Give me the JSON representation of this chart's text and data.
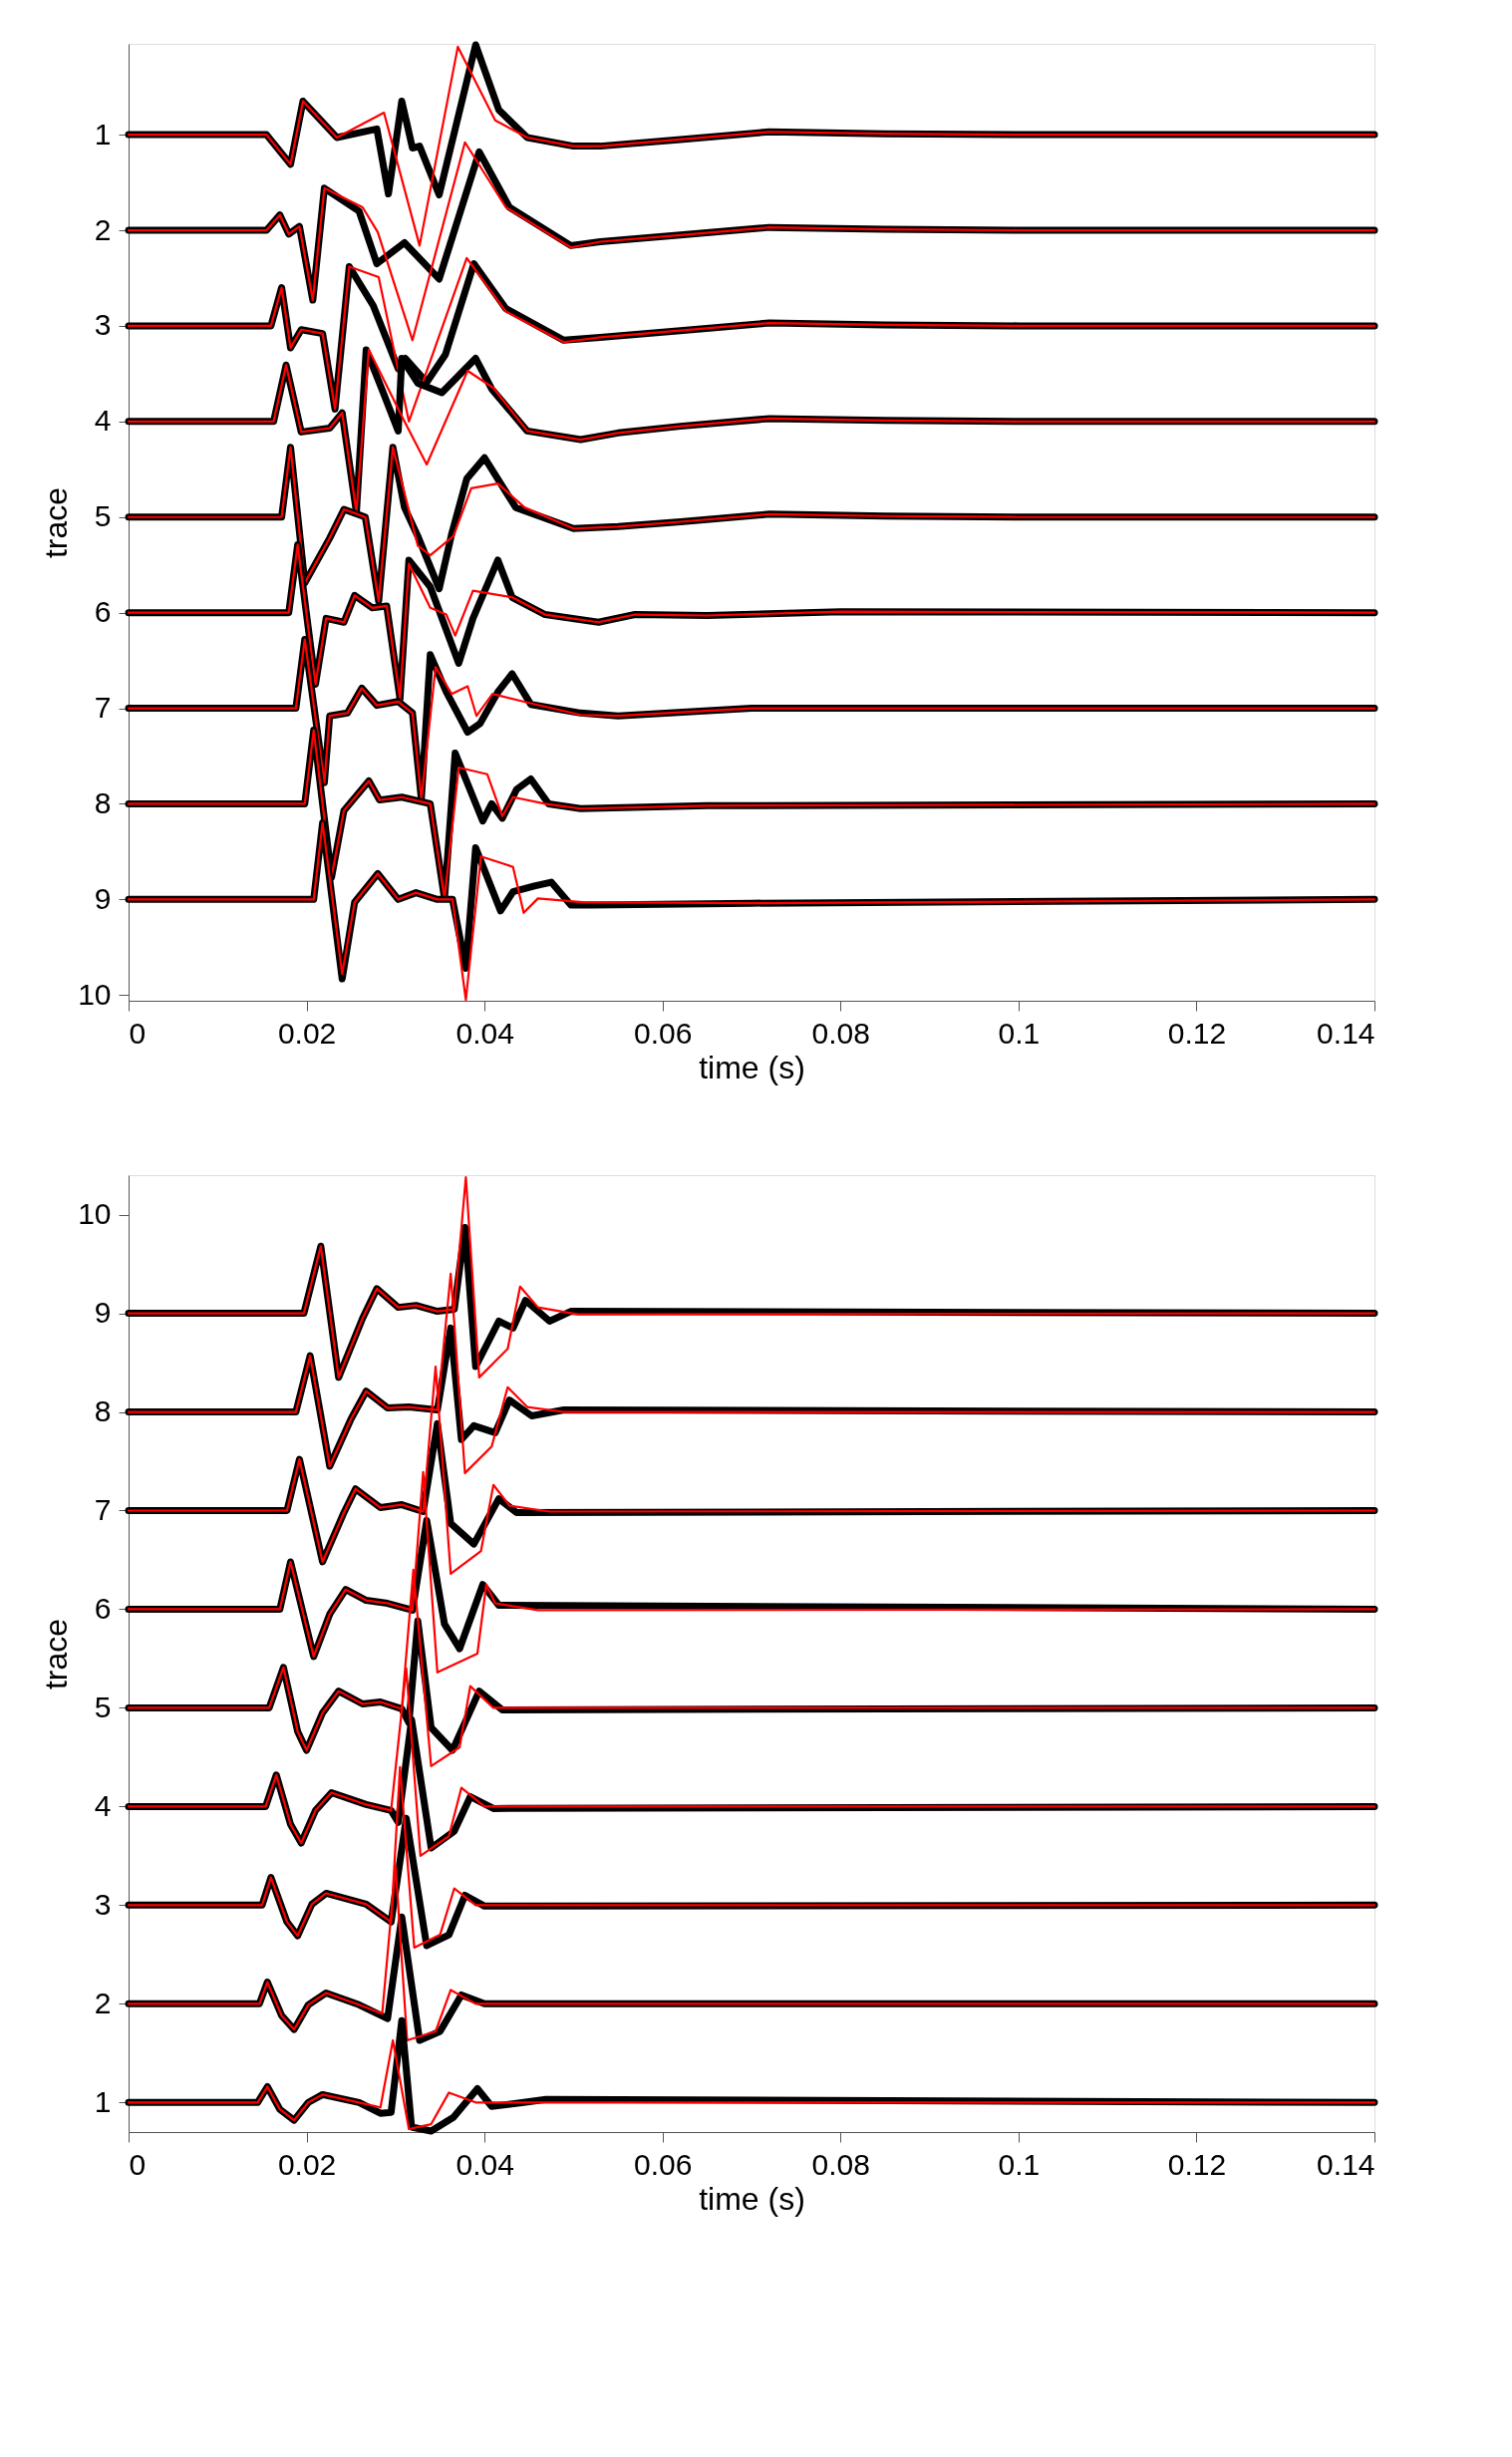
{
  "chart_data": [
    {
      "type": "line",
      "xlabel": "time (s)",
      "ylabel": "trace",
      "xlim": [
        0,
        0.14
      ],
      "xticks": [
        0,
        0.02,
        0.04,
        0.06,
        0.08,
        0.1,
        0.12,
        0.14
      ],
      "ylim": [
        10.06,
        0.05
      ],
      "yticks": [
        1,
        2,
        3,
        4,
        5,
        6,
        7,
        8,
        9,
        10
      ],
      "series": [
        {
          "color": "#000000",
          "x": [
            0,
            0.0155,
            0.0182,
            0.0196,
            0.0234,
            0.0279,
            0.0292,
            0.0307,
            0.0319,
            0.0327,
            0.0349,
            0.039,
            0.0416,
            0.0448,
            0.05,
            0.053,
            0.062,
            0.072,
            0.085,
            0.1,
            0.14
          ],
          "values": [
            1,
            1,
            1.31,
            0.65,
            1.03,
            0.94,
            1.62,
            0.65,
            1.14,
            1.12,
            1.63,
            0.06,
            0.74,
            1.03,
            1.12,
            1.12,
            1.05,
            0.97,
            0.99,
            1.0,
            1.0
          ]
        },
        {
          "color": "#ff0000",
          "x": [
            0,
            0.0155,
            0.0182,
            0.0196,
            0.0234,
            0.0287,
            0.0327,
            0.037,
            0.0412,
            0.0448,
            0.05,
            0.053,
            0.062,
            0.072,
            0.085,
            0.1,
            0.14
          ],
          "values": [
            1,
            1,
            1.31,
            0.65,
            1.03,
            0.77,
            2.16,
            0.08,
            0.85,
            1.03,
            1.12,
            1.12,
            1.05,
            0.97,
            0.99,
            1.0,
            1.0
          ]
        },
        {
          "color": "#000000",
          "x": [
            0,
            0.0155,
            0.017,
            0.018,
            0.0192,
            0.0207,
            0.022,
            0.0259,
            0.0279,
            0.031,
            0.0349,
            0.0394,
            0.0428,
            0.0497,
            0.053,
            0.062,
            0.072,
            0.085,
            0.1,
            0.14
          ],
          "values": [
            2,
            2,
            1.84,
            2.04,
            1.96,
            2.73,
            1.56,
            1.8,
            2.35,
            2.13,
            2.51,
            1.18,
            1.76,
            2.16,
            2.12,
            2.05,
            1.97,
            1.99,
            2.0,
            2.0
          ]
        },
        {
          "color": "#ff0000",
          "x": [
            0,
            0.0155,
            0.017,
            0.018,
            0.0192,
            0.0207,
            0.022,
            0.0263,
            0.028,
            0.0319,
            0.0378,
            0.0424,
            0.0497,
            0.053,
            0.062,
            0.072,
            0.085,
            0.1,
            0.14
          ],
          "values": [
            2,
            2,
            1.84,
            2.04,
            1.96,
            2.73,
            1.56,
            1.76,
            2.02,
            3.15,
            1.08,
            1.76,
            2.18,
            2.12,
            2.05,
            1.97,
            1.99,
            2.0,
            2.0
          ]
        },
        {
          "color": "#000000",
          "x": [
            0,
            0.016,
            0.0172,
            0.0182,
            0.0194,
            0.0218,
            0.0232,
            0.0248,
            0.0275,
            0.0303,
            0.0311,
            0.0335,
            0.0356,
            0.0388,
            0.0424,
            0.0489,
            0.053,
            0.062,
            0.072,
            0.085,
            0.1,
            0.14
          ],
          "values": [
            3,
            3,
            2.6,
            3.23,
            3.04,
            3.08,
            3.87,
            2.38,
            2.79,
            3.45,
            3.34,
            3.59,
            3.3,
            2.35,
            2.82,
            3.15,
            3.12,
            3.05,
            2.97,
            2.99,
            3.0,
            3.0
          ]
        },
        {
          "color": "#ff0000",
          "x": [
            0,
            0.016,
            0.0172,
            0.0182,
            0.0194,
            0.0218,
            0.0232,
            0.0248,
            0.0281,
            0.0315,
            0.038,
            0.0424,
            0.0489,
            0.053,
            0.062,
            0.072,
            0.085,
            0.1,
            0.14
          ],
          "values": [
            3,
            3,
            2.6,
            3.23,
            3.04,
            3.08,
            3.87,
            2.38,
            2.49,
            4.0,
            2.29,
            2.85,
            3.17,
            3.12,
            3.05,
            2.97,
            2.99,
            3.0,
            3.0
          ]
        },
        {
          "color": "#000000",
          "x": [
            0,
            0.0163,
            0.0177,
            0.0194,
            0.0226,
            0.024,
            0.0256,
            0.0267,
            0.0285,
            0.0303,
            0.0307,
            0.0325,
            0.0352,
            0.039,
            0.0408,
            0.0448,
            0.0508,
            0.055,
            0.062,
            0.072,
            0.085,
            0.1,
            0.14
          ],
          "values": [
            4,
            4,
            3.41,
            4.11,
            4.07,
            3.91,
            4.95,
            3.25,
            3.67,
            4.1,
            3.34,
            3.6,
            3.7,
            3.34,
            3.66,
            4.1,
            4.19,
            4.12,
            4.05,
            3.97,
            3.99,
            4.0,
            4.0
          ]
        },
        {
          "color": "#ff0000",
          "x": [
            0,
            0.0163,
            0.0177,
            0.0194,
            0.0226,
            0.024,
            0.0256,
            0.027,
            0.031,
            0.0335,
            0.0381,
            0.041,
            0.0448,
            0.0508,
            0.055,
            0.062,
            0.072,
            0.085,
            0.1,
            0.14
          ],
          "values": [
            4,
            4,
            3.41,
            4.11,
            4.07,
            3.91,
            4.95,
            3.25,
            4.0,
            4.45,
            3.47,
            3.65,
            4.1,
            4.19,
            4.12,
            4.05,
            3.97,
            3.99,
            4.0,
            4.0
          ]
        },
        {
          "color": "#000000",
          "x": [
            0,
            0.0172,
            0.0182,
            0.0198,
            0.0226,
            0.0242,
            0.0266,
            0.0281,
            0.0297,
            0.031,
            0.0325,
            0.0349,
            0.0363,
            0.038,
            0.04,
            0.0435,
            0.05,
            0.055,
            0.062,
            0.072,
            0.085,
            0.1,
            0.14
          ],
          "values": [
            5,
            5,
            4.27,
            5.69,
            5.22,
            4.92,
            5.0,
            5.88,
            4.27,
            4.9,
            5.2,
            5.75,
            5.18,
            4.6,
            4.38,
            4.9,
            5.12,
            5.1,
            5.05,
            4.97,
            4.99,
            5.0,
            5.0
          ]
        },
        {
          "color": "#ff0000",
          "x": [
            0,
            0.0172,
            0.0182,
            0.0198,
            0.0226,
            0.0242,
            0.0266,
            0.0281,
            0.0297,
            0.0325,
            0.0339,
            0.0365,
            0.0385,
            0.0415,
            0.0445,
            0.05,
            0.055,
            0.062,
            0.072,
            0.085,
            0.1,
            0.14
          ],
          "values": [
            5,
            5,
            4.27,
            5.69,
            5.22,
            4.92,
            5.0,
            5.88,
            4.27,
            5.3,
            5.4,
            5.2,
            4.7,
            4.65,
            4.9,
            5.12,
            5.1,
            5.05,
            4.97,
            4.99,
            5.0,
            5.0
          ]
        },
        {
          "color": "#000000",
          "x": [
            0,
            0.018,
            0.019,
            0.021,
            0.0222,
            0.0242,
            0.0254,
            0.0274,
            0.029,
            0.0305,
            0.0315,
            0.0339,
            0.0371,
            0.0387,
            0.0415,
            0.0431,
            0.0468,
            0.0528,
            0.0569,
            0.065,
            0.08,
            0.14
          ],
          "values": [
            6,
            6,
            5.29,
            6.75,
            6.06,
            6.1,
            5.82,
            5.95,
            5.93,
            6.9,
            5.45,
            5.73,
            6.53,
            6.06,
            5.45,
            5.84,
            6.02,
            6.1,
            6.02,
            6.03,
            5.99,
            6.0
          ]
        },
        {
          "color": "#ff0000",
          "x": [
            0,
            0.018,
            0.019,
            0.021,
            0.0222,
            0.0242,
            0.0254,
            0.0274,
            0.029,
            0.0305,
            0.0315,
            0.0339,
            0.0357,
            0.0367,
            0.0387,
            0.0431,
            0.0468,
            0.0528,
            0.0569,
            0.065,
            0.08,
            0.14
          ],
          "values": [
            6,
            6,
            5.29,
            6.75,
            6.06,
            6.1,
            5.82,
            5.95,
            5.93,
            6.9,
            5.49,
            5.95,
            6.02,
            6.24,
            5.77,
            5.84,
            6.02,
            6.1,
            6.02,
            6.03,
            5.99,
            6.0
          ]
        },
        {
          "color": "#000000",
          "x": [
            0,
            0.0188,
            0.0198,
            0.022,
            0.0226,
            0.0246,
            0.0262,
            0.0279,
            0.0303,
            0.0319,
            0.0329,
            0.0339,
            0.0357,
            0.0381,
            0.0395,
            0.0415,
            0.0431,
            0.0452,
            0.0508,
            0.055,
            0.07,
            0.14
          ],
          "values": [
            7,
            7,
            6.28,
            7.78,
            7.08,
            7.05,
            6.79,
            6.97,
            6.93,
            7.05,
            7.95,
            6.44,
            6.83,
            7.25,
            7.16,
            6.83,
            6.64,
            6.96,
            7.05,
            7.08,
            7.0,
            7.0
          ]
        },
        {
          "color": "#ff0000",
          "x": [
            0,
            0.0188,
            0.0198,
            0.022,
            0.0226,
            0.0246,
            0.0262,
            0.0279,
            0.0303,
            0.0319,
            0.0329,
            0.0345,
            0.0363,
            0.0381,
            0.0391,
            0.0409,
            0.0448,
            0.0508,
            0.055,
            0.07,
            0.14
          ],
          "values": [
            7,
            7,
            6.28,
            7.78,
            7.08,
            7.05,
            6.79,
            6.97,
            6.93,
            7.05,
            7.95,
            6.57,
            6.85,
            6.77,
            7.08,
            6.85,
            6.94,
            7.07,
            7.08,
            7.0,
            7.0
          ]
        },
        {
          "color": "#000000",
          "x": [
            0,
            0.0198,
            0.0208,
            0.0228,
            0.0242,
            0.027,
            0.0282,
            0.0307,
            0.0339,
            0.0355,
            0.0367,
            0.0398,
            0.0408,
            0.042,
            0.0436,
            0.0452,
            0.0472,
            0.0508,
            0.065,
            0.14
          ],
          "values": [
            8,
            8,
            7.23,
            8.77,
            8.07,
            7.76,
            7.96,
            7.93,
            8.0,
            8.99,
            7.47,
            8.18,
            8.0,
            8.15,
            7.85,
            7.74,
            8.0,
            8.05,
            8.02,
            8.0
          ]
        },
        {
          "color": "#ff0000",
          "x": [
            0,
            0.0198,
            0.0208,
            0.0228,
            0.0242,
            0.027,
            0.0282,
            0.0307,
            0.0339,
            0.0355,
            0.0371,
            0.0403,
            0.042,
            0.0432,
            0.0468,
            0.0508,
            0.065,
            0.14
          ],
          "values": [
            8,
            8,
            7.23,
            8.77,
            8.07,
            7.76,
            7.96,
            7.93,
            8.0,
            8.99,
            7.62,
            7.69,
            8.13,
            7.93,
            8.0,
            8.05,
            8.02,
            8.0
          ]
        },
        {
          "color": "#000000",
          "x": [
            0,
            0.0208,
            0.0218,
            0.024,
            0.0254,
            0.028,
            0.0303,
            0.0323,
            0.0347,
            0.0364,
            0.0379,
            0.039,
            0.0418,
            0.0432,
            0.0456,
            0.0475,
            0.0497,
            0.052,
            0.07,
            0.14
          ],
          "values": [
            9,
            9,
            8.2,
            9.83,
            9.03,
            8.73,
            9.0,
            8.93,
            9.0,
            9.0,
            9.72,
            8.46,
            9.12,
            8.92,
            8.86,
            8.82,
            9.06,
            9.06,
            9.04,
            9.0
          ]
        },
        {
          "color": "#ff0000",
          "x": [
            0,
            0.0208,
            0.0218,
            0.024,
            0.0254,
            0.028,
            0.0303,
            0.0323,
            0.0347,
            0.0364,
            0.0379,
            0.0396,
            0.0432,
            0.0444,
            0.046,
            0.051,
            0.07,
            0.14
          ],
          "values": [
            9,
            9,
            8.2,
            9.78,
            9.03,
            8.73,
            9.0,
            8.93,
            9.0,
            9.0,
            10.05,
            8.55,
            8.66,
            9.14,
            8.99,
            9.03,
            9.04,
            9.0
          ]
        }
      ]
    },
    {
      "type": "line",
      "xlabel": "time (s)",
      "ylabel": "trace",
      "xlim": [
        0,
        0.14
      ],
      "xticks": [
        0,
        0.02,
        0.04,
        0.06,
        0.08,
        0.1,
        0.12,
        0.14
      ],
      "ylim": [
        0.7,
        10.4
      ],
      "yticks": [
        1,
        2,
        3,
        4,
        5,
        6,
        7,
        8,
        9,
        10
      ],
      "series": [
        {
          "color": "#000000",
          "x": [
            0,
            0.0197,
            0.0216,
            0.0236,
            0.0263,
            0.0279,
            0.0303,
            0.0323,
            0.0347,
            0.0366,
            0.0378,
            0.039,
            0.0416,
            0.0432,
            0.0446,
            0.0473,
            0.0497,
            0.14
          ],
          "values": [
            9,
            9,
            9.68,
            8.35,
            8.95,
            9.25,
            9.06,
            9.08,
            9.02,
            9.04,
            9.87,
            8.46,
            8.92,
            8.85,
            9.13,
            8.92,
            9.02,
            9.0
          ]
        },
        {
          "color": "#ff0000",
          "x": [
            0,
            0.0197,
            0.0216,
            0.0236,
            0.0263,
            0.0279,
            0.0303,
            0.0323,
            0.0347,
            0.0366,
            0.0379,
            0.0394,
            0.0426,
            0.044,
            0.046,
            0.0505,
            0.14
          ],
          "values": [
            9,
            9,
            9.68,
            8.35,
            8.95,
            9.25,
            9.06,
            9.08,
            9.02,
            9.04,
            10.38,
            8.35,
            8.64,
            9.27,
            9.06,
            8.99,
            9.0
          ]
        },
        {
          "color": "#000000",
          "x": [
            0,
            0.0188,
            0.0204,
            0.0226,
            0.025,
            0.0267,
            0.0291,
            0.0315,
            0.0347,
            0.0362,
            0.0374,
            0.0388,
            0.0412,
            0.0428,
            0.0453,
            0.0489,
            0.14
          ],
          "values": [
            8,
            8,
            8.57,
            7.45,
            7.93,
            8.21,
            8.04,
            8.05,
            8.02,
            8.85,
            7.72,
            7.86,
            7.79,
            8.12,
            7.96,
            8.02,
            8.0
          ]
        },
        {
          "color": "#ff0000",
          "x": [
            0,
            0.0188,
            0.0204,
            0.0226,
            0.025,
            0.0267,
            0.0291,
            0.0315,
            0.0347,
            0.0362,
            0.0378,
            0.0408,
            0.0426,
            0.0448,
            0.0489,
            0.14
          ],
          "values": [
            8,
            8,
            8.57,
            7.45,
            7.93,
            8.21,
            8.04,
            8.05,
            8.02,
            9.4,
            7.38,
            7.65,
            8.25,
            8.05,
            8.0,
            8.0
          ]
        },
        {
          "color": "#000000",
          "x": [
            0,
            0.0178,
            0.0192,
            0.0218,
            0.0242,
            0.0255,
            0.0283,
            0.0307,
            0.0331,
            0.0347,
            0.0362,
            0.0388,
            0.0416,
            0.0436,
            0.14
          ],
          "values": [
            7,
            7,
            7.52,
            6.48,
            6.98,
            7.22,
            7.03,
            7.06,
            6.99,
            7.88,
            6.87,
            6.66,
            7.12,
            6.98,
            7.0
          ]
        },
        {
          "color": "#ff0000",
          "x": [
            0,
            0.0178,
            0.0192,
            0.0218,
            0.0242,
            0.0255,
            0.0283,
            0.0307,
            0.0331,
            0.0345,
            0.0362,
            0.0396,
            0.041,
            0.0428,
            0.0473,
            0.14
          ],
          "values": [
            7,
            7,
            7.52,
            6.48,
            6.98,
            7.22,
            7.03,
            7.06,
            6.99,
            8.46,
            6.36,
            6.59,
            7.26,
            7.05,
            6.99,
            7.0
          ]
        },
        {
          "color": "#000000",
          "x": [
            0,
            0.017,
            0.0182,
            0.0208,
            0.0226,
            0.0244,
            0.0267,
            0.0291,
            0.0319,
            0.0335,
            0.0355,
            0.0372,
            0.0398,
            0.0416,
            0.14
          ],
          "values": [
            6,
            6,
            6.48,
            5.52,
            5.95,
            6.2,
            6.09,
            6.06,
            5.99,
            6.9,
            5.85,
            5.6,
            6.25,
            6.04,
            6.0
          ]
        },
        {
          "color": "#ff0000",
          "x": [
            0,
            0.017,
            0.0182,
            0.0208,
            0.0226,
            0.0244,
            0.0267,
            0.0291,
            0.0319,
            0.0331,
            0.0347,
            0.0392,
            0.0402,
            0.0412,
            0.046,
            0.14
          ],
          "values": [
            6,
            6,
            6.48,
            5.52,
            5.95,
            6.2,
            6.09,
            6.06,
            5.99,
            7.39,
            5.36,
            5.55,
            6.25,
            6.06,
            5.99,
            6.0
          ]
        },
        {
          "color": "#000000",
          "x": [
            0,
            0.0158,
            0.0174,
            0.019,
            0.02,
            0.0218,
            0.0236,
            0.0263,
            0.0283,
            0.0307,
            0.0315,
            0.0325,
            0.034,
            0.0364,
            0.0394,
            0.042,
            0.14
          ],
          "values": [
            5,
            5,
            5.41,
            4.76,
            4.57,
            4.95,
            5.17,
            5.04,
            5.06,
            4.99,
            4.85,
            5.88,
            4.8,
            4.57,
            5.17,
            4.98,
            5.0
          ]
        },
        {
          "color": "#ff0000",
          "x": [
            0,
            0.0158,
            0.0174,
            0.019,
            0.02,
            0.0218,
            0.0236,
            0.0263,
            0.0283,
            0.0307,
            0.032,
            0.034,
            0.0372,
            0.0384,
            0.041,
            0.14
          ],
          "values": [
            5,
            5,
            5.41,
            4.76,
            4.57,
            4.95,
            5.17,
            5.04,
            5.06,
            4.99,
            6.4,
            4.41,
            4.6,
            5.22,
            5.0,
            5.0
          ]
        },
        {
          "color": "#000000",
          "x": [
            0,
            0.0154,
            0.0166,
            0.0182,
            0.0194,
            0.021,
            0.0228,
            0.0267,
            0.0295,
            0.0303,
            0.0318,
            0.034,
            0.0366,
            0.0384,
            0.041,
            0.14
          ],
          "values": [
            4,
            4,
            4.32,
            3.82,
            3.63,
            3.96,
            4.14,
            4.02,
            3.96,
            3.84,
            4.88,
            3.58,
            3.75,
            4.1,
            3.98,
            4.0
          ]
        },
        {
          "color": "#ff0000",
          "x": [
            0,
            0.0154,
            0.0166,
            0.0182,
            0.0194,
            0.021,
            0.0228,
            0.0267,
            0.0295,
            0.0312,
            0.0328,
            0.036,
            0.0374,
            0.04,
            0.14
          ],
          "values": [
            4,
            4,
            4.32,
            3.82,
            3.63,
            3.96,
            4.14,
            4.02,
            3.96,
            5.4,
            3.5,
            3.7,
            4.19,
            4.0,
            4.0
          ]
        },
        {
          "color": "#000000",
          "x": [
            0,
            0.015,
            0.016,
            0.0178,
            0.019,
            0.0206,
            0.0222,
            0.0267,
            0.0295,
            0.0312,
            0.0335,
            0.036,
            0.0378,
            0.04,
            0.14
          ],
          "values": [
            3,
            3,
            3.28,
            2.83,
            2.69,
            3.01,
            3.12,
            3.01,
            2.83,
            3.88,
            2.59,
            2.7,
            3.1,
            2.99,
            3.0
          ]
        },
        {
          "color": "#ff0000",
          "x": [
            0,
            0.015,
            0.016,
            0.0178,
            0.019,
            0.0206,
            0.0222,
            0.0267,
            0.0295,
            0.0305,
            0.0321,
            0.035,
            0.0366,
            0.039,
            0.14
          ],
          "values": [
            3,
            3,
            3.28,
            2.83,
            2.69,
            3.01,
            3.12,
            3.01,
            2.83,
            4.4,
            2.57,
            2.7,
            3.17,
            3.0,
            3.0
          ]
        },
        {
          "color": "#000000",
          "x": [
            0,
            0.0147,
            0.0156,
            0.0172,
            0.0186,
            0.0202,
            0.0222,
            0.0259,
            0.0291,
            0.0307,
            0.0327,
            0.035,
            0.0374,
            0.04,
            0.14
          ],
          "values": [
            2,
            2,
            2.22,
            1.88,
            1.74,
            1.99,
            2.11,
            1.99,
            1.85,
            2.88,
            1.63,
            1.72,
            2.09,
            2.0,
            2.0
          ]
        },
        {
          "color": "#ff0000",
          "x": [
            0,
            0.0147,
            0.0156,
            0.0172,
            0.0186,
            0.0202,
            0.0222,
            0.0259,
            0.0285,
            0.03,
            0.0313,
            0.0345,
            0.0362,
            0.039,
            0.14
          ],
          "values": [
            2,
            2,
            2.22,
            1.88,
            1.74,
            1.99,
            2.11,
            1.99,
            1.9,
            3.4,
            1.63,
            1.72,
            2.14,
            2.0,
            2.0
          ]
        },
        {
          "color": "#000000",
          "x": [
            0,
            0.0145,
            0.0156,
            0.017,
            0.0186,
            0.0202,
            0.0218,
            0.0259,
            0.0283,
            0.0295,
            0.0307,
            0.0318,
            0.034,
            0.0365,
            0.0392,
            0.0408,
            0.0444,
            0.0469,
            0.14
          ],
          "values": [
            1,
            1,
            1.16,
            0.93,
            0.82,
            1.0,
            1.08,
            1.0,
            0.89,
            0.9,
            1.83,
            0.75,
            0.71,
            0.85,
            1.14,
            0.96,
            1.0,
            1.03,
            1.0
          ]
        },
        {
          "color": "#ff0000",
          "x": [
            0,
            0.0145,
            0.0156,
            0.017,
            0.0186,
            0.0202,
            0.0218,
            0.0259,
            0.0283,
            0.0297,
            0.0315,
            0.034,
            0.036,
            0.039,
            0.14
          ],
          "values": [
            1,
            1,
            1.16,
            0.93,
            0.82,
            1.0,
            1.08,
            1.0,
            0.95,
            1.63,
            0.73,
            0.78,
            1.1,
            1.0,
            1.0
          ]
        }
      ]
    }
  ]
}
